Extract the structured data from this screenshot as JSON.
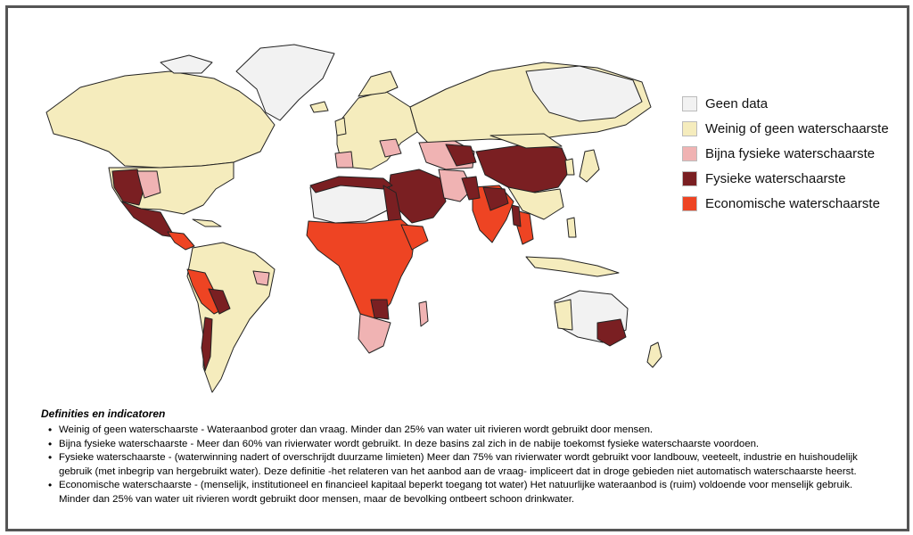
{
  "colors": {
    "geen_data": "#f2f2f2",
    "weinig": "#f5ecbd",
    "bijna": "#f0b3b3",
    "fysiek": "#7a1f22",
    "economisch": "#ee4423",
    "border": "#222222"
  },
  "legend": [
    {
      "key": "geen_data",
      "label": "Geen data"
    },
    {
      "key": "weinig",
      "label": "Weinig of geen waterschaarste"
    },
    {
      "key": "bijna",
      "label": "Bijna fysieke waterschaarste"
    },
    {
      "key": "fysiek",
      "label": "Fysieke waterschaarste"
    },
    {
      "key": "economisch",
      "label": "Economische waterschaarste"
    }
  ],
  "definitions": {
    "title": "Definities en indicatoren",
    "items": [
      "Weinig of geen waterschaarste - Wateraanbod groter dan vraag. Minder dan 25% van water uit rivieren wordt gebruikt door mensen.",
      "Bijna fysieke waterschaarste - Meer dan 60% van rivierwater wordt gebruikt. In deze basins zal zich in de nabije toekomst fysieke waterschaarste voordoen.",
      "Fysieke waterschaarste - (waterwinning nadert of overschrijdt duurzame limieten) Meer dan 75% van rivierwater wordt gebruikt voor landbouw, veeteelt, industrie en huishoudelijk gebruik (met inbegrip van hergebruikt water). Deze definitie -het relateren van het aanbod aan de vraag- impliceert dat in droge gebieden niet automatisch waterschaarste heerst.",
      "Economische waterschaarste - (menselijk, institutioneel en financieel kapitaal beperkt toegang tot water) Het natuurlijke wateraanbod is (ruim) voldoende voor menselijk gebruik. Minder dan 25% van water uit rivieren wordt gebruikt door mensen, maar de bevolking ontbeert schoon drinkwater."
    ]
  }
}
